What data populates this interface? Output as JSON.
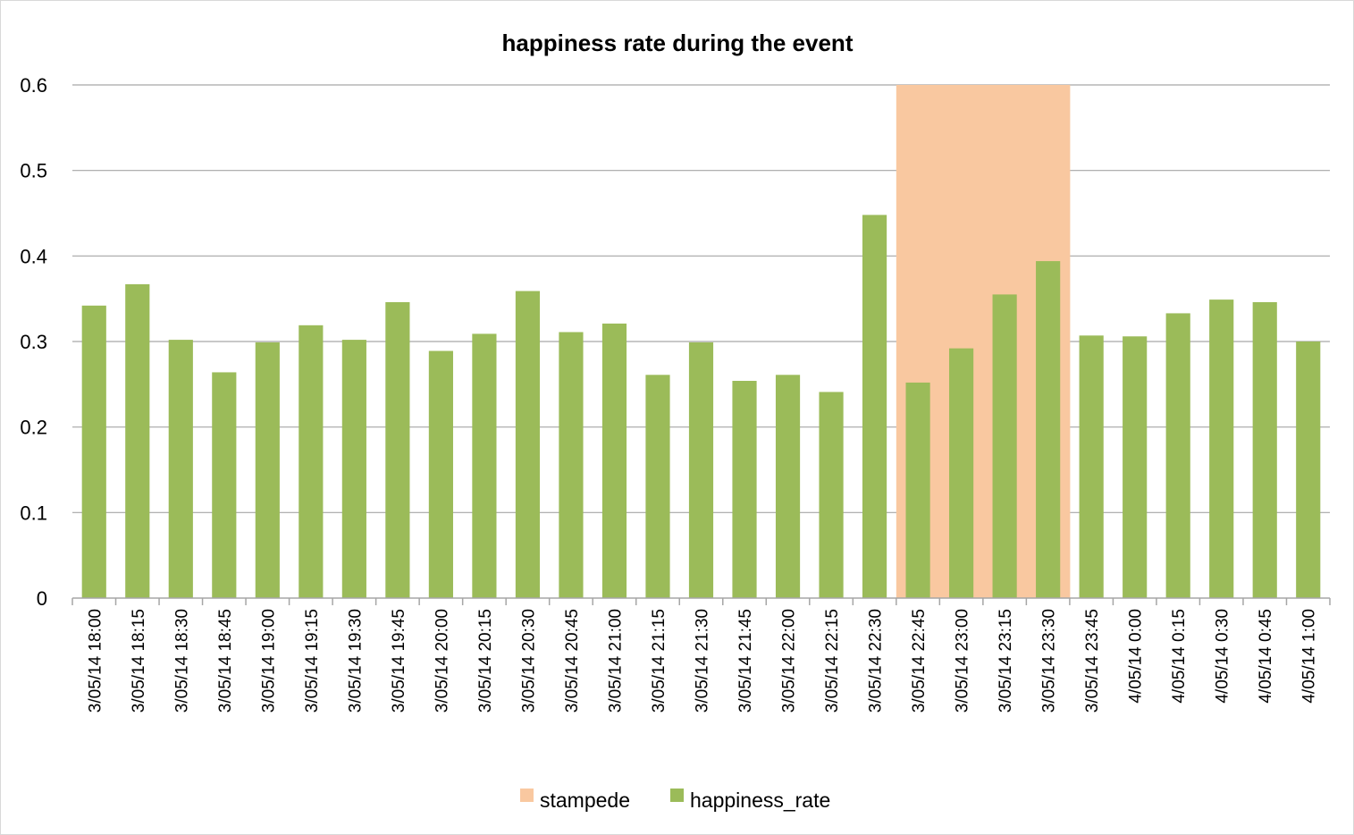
{
  "chart_data": {
    "type": "bar",
    "title": "happiness rate during the event",
    "xlabel": "",
    "ylabel": "",
    "ylim": [
      0,
      0.6
    ],
    "yticks": [
      "0",
      "0.1",
      "0.2",
      "0.3",
      "0.4",
      "0.5",
      "0.6"
    ],
    "grid": true,
    "legend": "bottom",
    "categories": [
      "3/05/14 18:00",
      "3/05/14 18:15",
      "3/05/14 18:30",
      "3/05/14 18:45",
      "3/05/14 19:00",
      "3/05/14 19:15",
      "3/05/14 19:30",
      "3/05/14 19:45",
      "3/05/14 20:00",
      "3/05/14 20:15",
      "3/05/14 20:30",
      "3/05/14 20:45",
      "3/05/14 21:00",
      "3/05/14 21:15",
      "3/05/14 21:30",
      "3/05/14 21:45",
      "3/05/14 22:00",
      "3/05/14 22:15",
      "3/05/14 22:30",
      "3/05/14 22:45",
      "3/05/14 23:00",
      "3/05/14 23:15",
      "3/05/14 23:30",
      "3/05/14 23:45",
      "4/05/14 0:00",
      "4/05/14 0:15",
      "4/05/14 0:30",
      "4/05/14 0:45",
      "4/05/14 1:00"
    ],
    "series": [
      {
        "name": "stampede",
        "color": "#f9c8a0",
        "values": [
          0,
          0,
          0,
          0,
          0,
          0,
          0,
          0,
          0,
          0,
          0,
          0,
          0,
          0,
          0,
          0,
          0,
          0,
          0,
          0.6,
          0.6,
          0.6,
          0.6,
          0,
          0,
          0,
          0,
          0,
          0
        ]
      },
      {
        "name": "happiness_rate",
        "color": "#9bbb59",
        "values": [
          0.342,
          0.367,
          0.302,
          0.264,
          0.299,
          0.319,
          0.302,
          0.346,
          0.289,
          0.309,
          0.359,
          0.311,
          0.321,
          0.261,
          0.299,
          0.254,
          0.261,
          0.241,
          0.448,
          0.252,
          0.292,
          0.355,
          0.394,
          0.307,
          0.306,
          0.333,
          0.349,
          0.346,
          0.3
        ]
      }
    ]
  },
  "colors": {
    "grid": "#a6a6a6",
    "axis": "#a6a6a6"
  }
}
